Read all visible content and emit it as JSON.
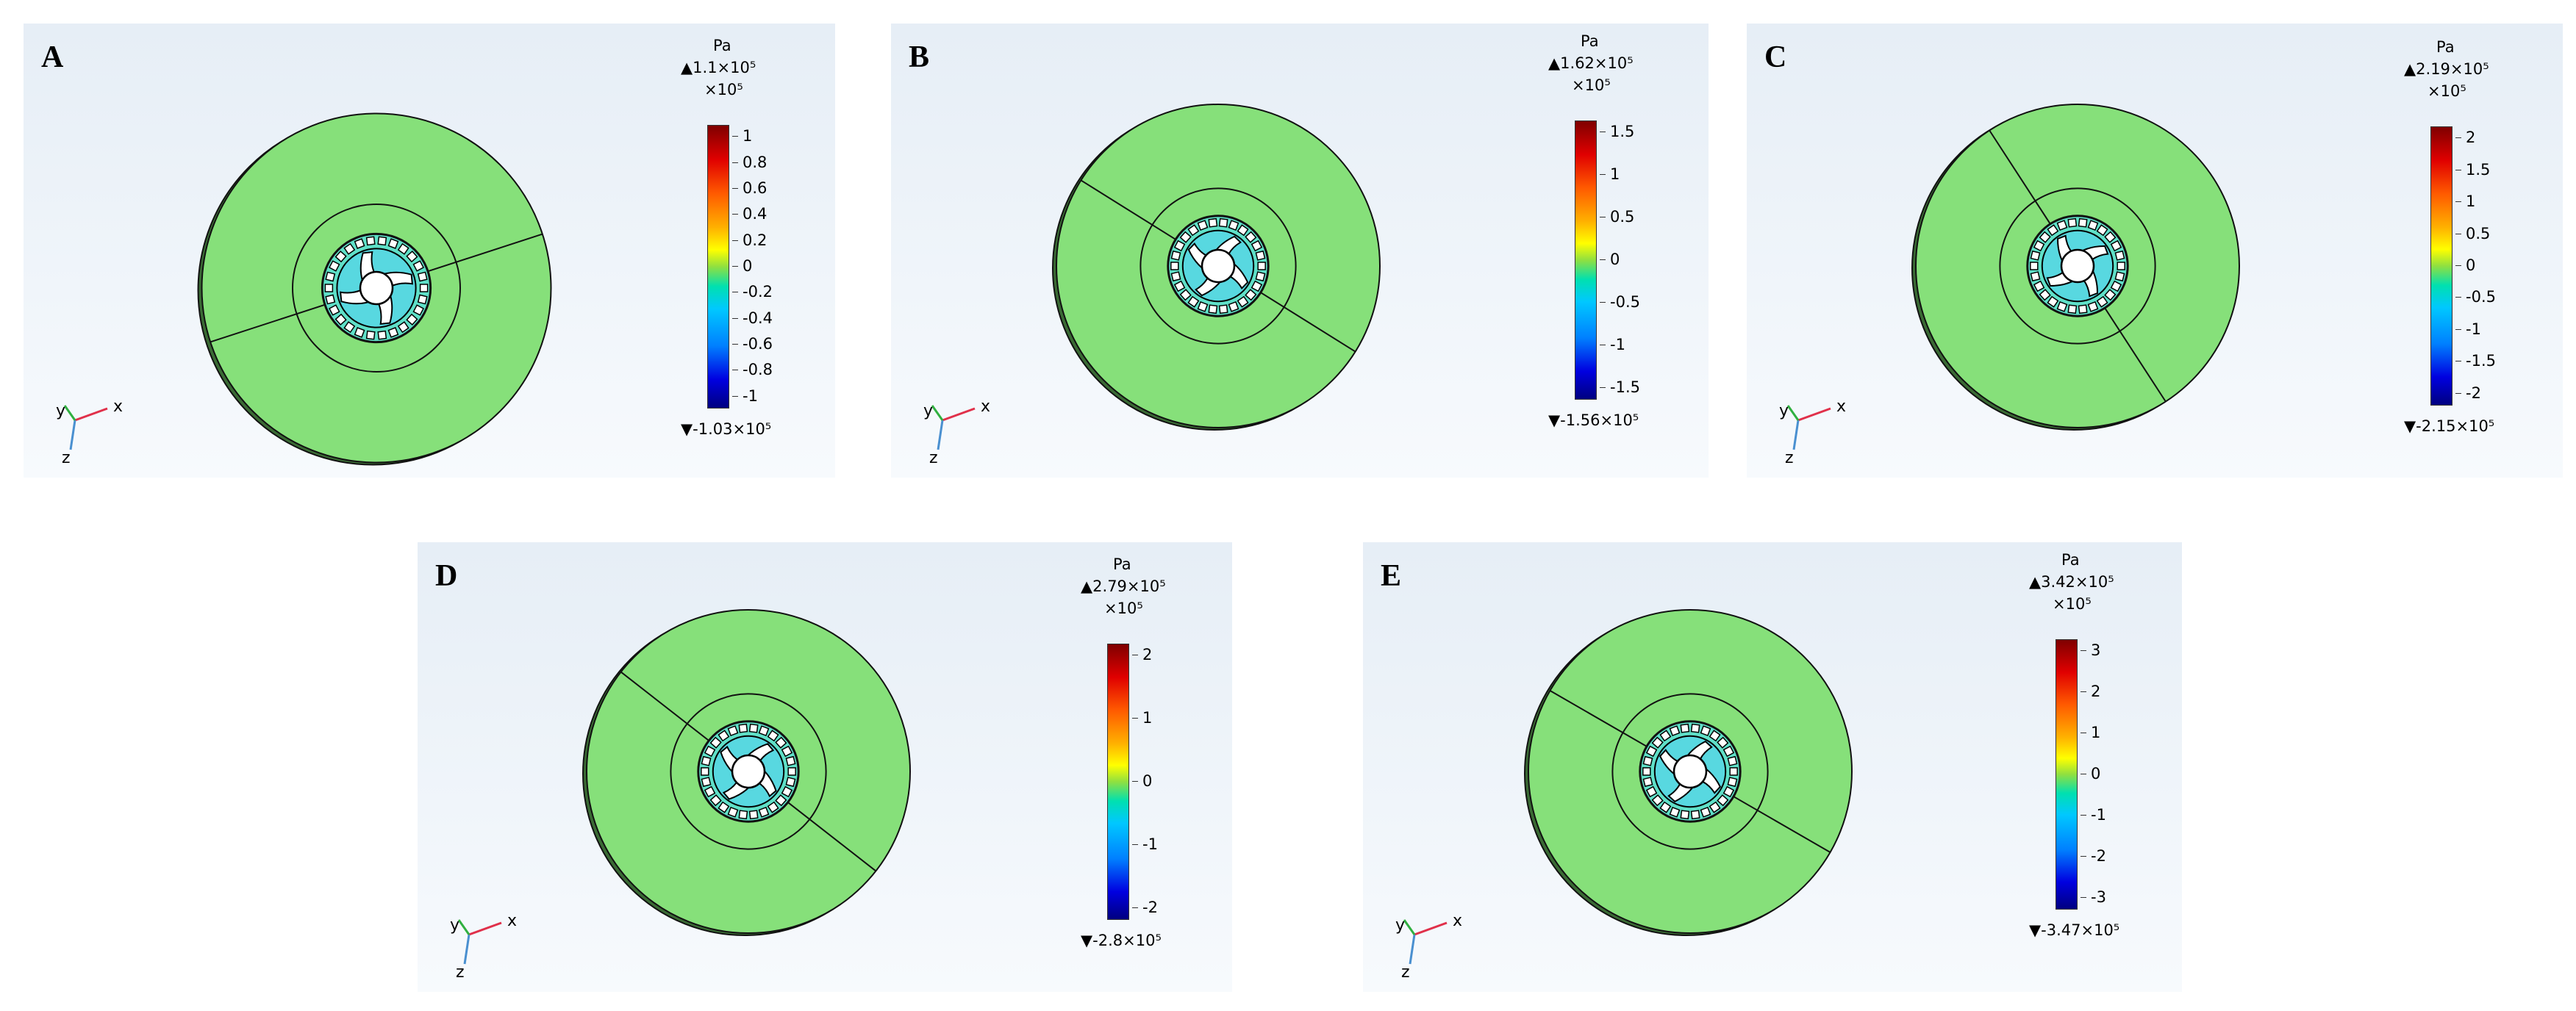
{
  "panels": [
    {
      "label": "A",
      "unit": "Pa",
      "max": "1.1×10⁵",
      "multiplier": "×10⁵",
      "min": "-1.03×10⁵",
      "ticks": [
        "1",
        "0.8",
        "0.6",
        "0.4",
        "0.2",
        "0",
        "-0.2",
        "-0.4",
        "-0.6",
        "-0.8",
        "-1"
      ],
      "axes": [
        "y",
        "x",
        "z"
      ]
    },
    {
      "label": "B",
      "unit": "Pa",
      "max": "1.62×10⁵",
      "multiplier": "×10⁵",
      "min": "-1.56×10⁵",
      "ticks": [
        "1.5",
        "1",
        "0.5",
        "0",
        "-0.5",
        "-1",
        "-1.5"
      ],
      "axes": [
        "y",
        "x",
        "z"
      ]
    },
    {
      "label": "C",
      "unit": "Pa",
      "max": "2.19×10⁵",
      "multiplier": "×10⁵",
      "min": "-2.15×10⁵",
      "ticks": [
        "2",
        "1.5",
        "1",
        "0.5",
        "0",
        "-0.5",
        "-1",
        "-1.5",
        "-2"
      ],
      "axes": [
        "y",
        "x",
        "z"
      ]
    },
    {
      "label": "D",
      "unit": "Pa",
      "max": "2.79×10⁵",
      "multiplier": "×10⁵",
      "min": "-2.8×10⁵",
      "ticks": [
        "2",
        "1",
        "0",
        "-1",
        "-2"
      ],
      "axes": [
        "y",
        "x",
        "z"
      ]
    },
    {
      "label": "E",
      "unit": "Pa",
      "max": "3.42×10⁵",
      "multiplier": "×10⁵",
      "min": "-3.47×10⁵",
      "ticks": [
        "3",
        "2",
        "1",
        "0",
        "-1",
        "-2",
        "-3"
      ],
      "axes": [
        "y",
        "x",
        "z"
      ]
    }
  ],
  "colors": {
    "disc": "#86e07a",
    "ring": "#5fe0c8",
    "outline": "#111111"
  }
}
